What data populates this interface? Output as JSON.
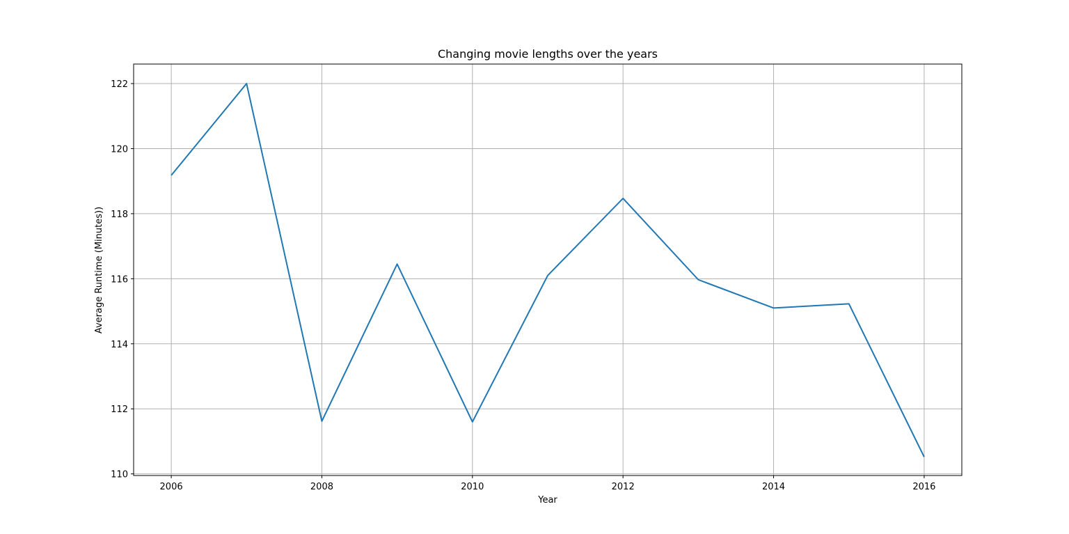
{
  "chart_data": {
    "type": "line",
    "title": "Changing movie lengths over the years",
    "xlabel": "Year",
    "ylabel": "Average Runtime (Minutes))",
    "xlim": [
      2005.5,
      2016.5
    ],
    "ylim": [
      109.95,
      122.6
    ],
    "xticks": [
      2006,
      2008,
      2010,
      2012,
      2014,
      2016
    ],
    "yticks": [
      110,
      112,
      114,
      116,
      118,
      120,
      122
    ],
    "grid": true,
    "legend": "none",
    "series": [
      {
        "color": "#1f77b4",
        "x": [
          2006,
          2007,
          2008,
          2009,
          2010,
          2011,
          2012,
          2013,
          2014,
          2015,
          2016
        ],
        "y": [
          119.18,
          122.0,
          111.62,
          116.45,
          111.6,
          116.1,
          118.47,
          115.97,
          115.1,
          115.23,
          110.52
        ]
      }
    ]
  }
}
